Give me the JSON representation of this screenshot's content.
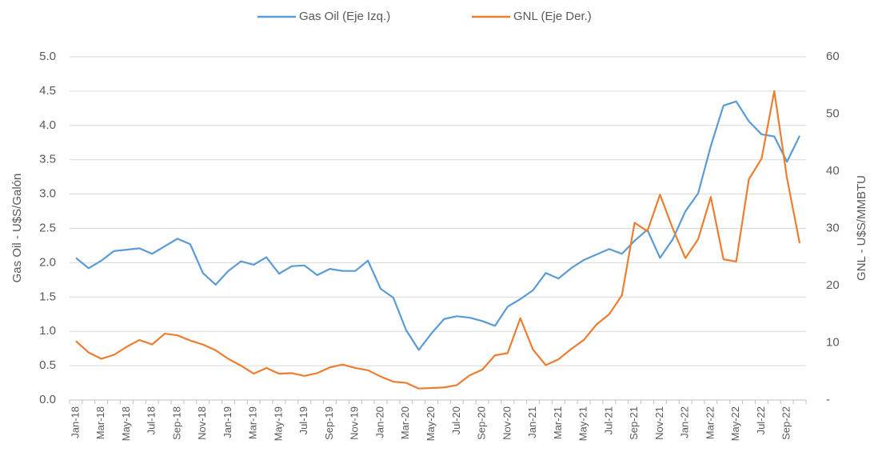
{
  "chart_data": {
    "type": "line",
    "y_label": "Gas Oil - U$S/Galón",
    "y2_label": "GNL - U$S/MMBTU",
    "categories": [
      "Jan-18",
      null,
      "Mar-18",
      null,
      "May-18",
      null,
      "Jul-18",
      null,
      "Sep-18",
      null,
      "Nov-18",
      null,
      "Jan-19",
      null,
      "Mar-19",
      null,
      "May-19",
      null,
      "Jul-19",
      null,
      "Sep-19",
      null,
      "Nov-19",
      null,
      "Jan-20",
      null,
      "Mar-20",
      null,
      "May-20",
      null,
      "Jul-20",
      null,
      "Sep-20",
      null,
      "Nov-20",
      null,
      "Jan-21",
      null,
      "Mar-21",
      null,
      "May-21",
      null,
      "Jul-21",
      null,
      "Sep-21",
      null,
      "Nov-21",
      null,
      "Jan-22",
      null,
      "Mar-22",
      null,
      "May-22",
      null,
      "Jul-22",
      null,
      "Sep-22",
      null
    ],
    "series": [
      {
        "name": "Gas Oil (Eje Izq.)",
        "color": "#5b9bd5",
        "axis": "y",
        "values": [
          2.07,
          1.92,
          2.03,
          2.17,
          2.19,
          2.21,
          2.13,
          2.24,
          2.35,
          2.27,
          1.85,
          1.68,
          1.88,
          2.02,
          1.97,
          2.08,
          1.84,
          1.95,
          1.96,
          1.82,
          1.91,
          1.88,
          1.88,
          2.03,
          1.62,
          1.49,
          1.02,
          0.73,
          0.97,
          1.18,
          1.22,
          1.2,
          1.15,
          1.08,
          1.36,
          1.47,
          1.6,
          1.85,
          1.77,
          1.92,
          2.04,
          2.12,
          2.2,
          2.13,
          2.32,
          2.48,
          2.07,
          2.34,
          2.75,
          3.01,
          3.7,
          4.29,
          4.35,
          4.06,
          3.87,
          3.84,
          3.47,
          3.85
        ]
      },
      {
        "name": "GNL (Eje Der.)",
        "color": "#ed7d31",
        "axis": "y2",
        "values": [
          10.3,
          8.3,
          7.2,
          7.9,
          9.3,
          10.5,
          9.7,
          11.6,
          11.3,
          10.4,
          9.7,
          8.7,
          7.2,
          6.0,
          4.6,
          5.6,
          4.6,
          4.7,
          4.2,
          4.7,
          5.7,
          6.2,
          5.6,
          5.2,
          4.1,
          3.2,
          3.0,
          2.0,
          2.1,
          2.2,
          2.6,
          4.3,
          5.3,
          7.8,
          8.2,
          14.3,
          8.8,
          6.1,
          7.1,
          8.9,
          10.5,
          13.2,
          15.0,
          18.3,
          31.0,
          29.5,
          35.9,
          30.0,
          24.8,
          28.1,
          35.5,
          24.6,
          24.2,
          38.6,
          42.2,
          54.0,
          38.8,
          27.4
        ]
      }
    ],
    "ylim": [
      0,
      5
    ],
    "yticks": [
      {
        "value": 0,
        "label": "0.0"
      },
      {
        "value": 0.5,
        "label": "0.5"
      },
      {
        "value": 1,
        "label": "1.0"
      },
      {
        "value": 1.5,
        "label": "1.5"
      },
      {
        "value": 2,
        "label": "2.0"
      },
      {
        "value": 2.5,
        "label": "2.5"
      },
      {
        "value": 3,
        "label": "3.0"
      },
      {
        "value": 3.5,
        "label": "3.5"
      },
      {
        "value": 4,
        "label": "4.0"
      },
      {
        "value": 4.5,
        "label": "4.5"
      },
      {
        "value": 5,
        "label": "5.0"
      }
    ],
    "y2lim": [
      0,
      60
    ],
    "y2ticks": [
      {
        "value": 0,
        "label": "-"
      },
      10,
      20,
      30,
      40,
      50,
      60
    ],
    "grid": true,
    "legend": "top"
  }
}
